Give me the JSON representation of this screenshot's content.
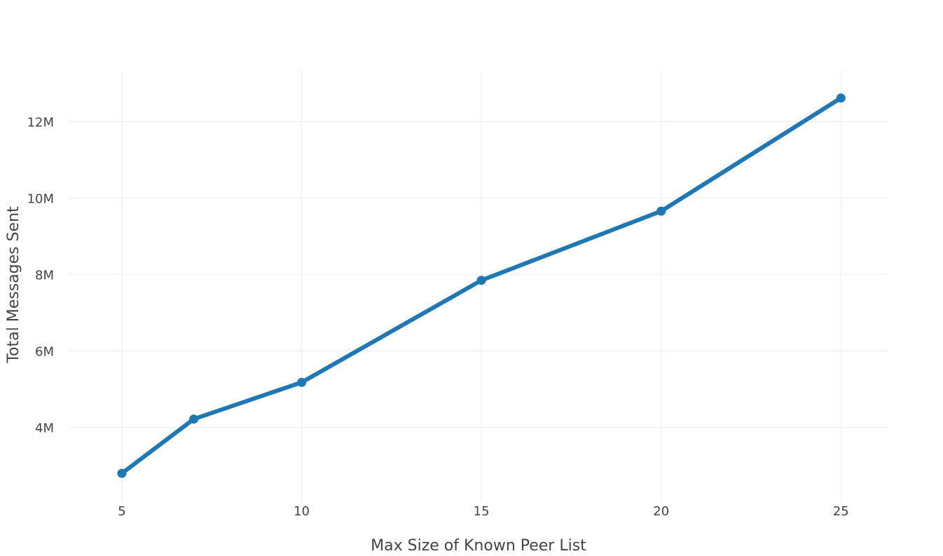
{
  "chart_data": {
    "type": "line",
    "title": "",
    "xlabel": "Max Size of Known Peer List",
    "ylabel": "Total Messages Sent",
    "x": [
      5,
      7,
      10,
      15,
      20,
      25
    ],
    "series": [
      {
        "values": [
          2800000,
          4220000,
          5180000,
          7850000,
          9660000,
          12620000
        ]
      }
    ],
    "xlim": [
      3.5,
      26.3
    ],
    "ylim": [
      2050000,
      13350000
    ],
    "xticks": [
      5,
      10,
      15,
      20,
      25
    ],
    "xtick_labels": [
      "5",
      "10",
      "15",
      "20",
      "25"
    ],
    "yticks": [
      4000000,
      6000000,
      8000000,
      10000000,
      12000000
    ],
    "ytick_labels": [
      "4M",
      "6M",
      "8M",
      "10M",
      "12M"
    ],
    "grid": true,
    "legend": "none",
    "colors": {
      "line": "#1f77b4",
      "grid": "#eeeeee",
      "text": "#444444"
    }
  }
}
